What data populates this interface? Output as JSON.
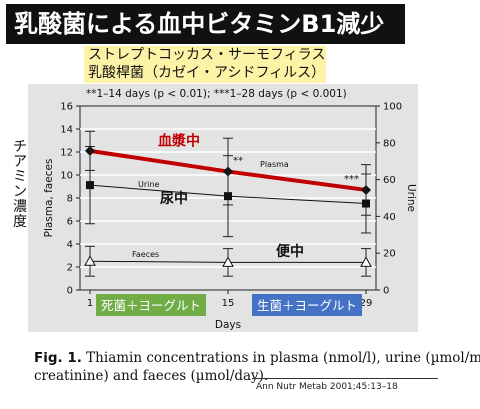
{
  "title": "乳酸菌による血中ビタミンB1減少",
  "bacteria": {
    "line1": "ストレプトコッカス・サーモフィラス",
    "line2": "乳酸桿菌（カゼイ・アシドフィルス）"
  },
  "ylabel_jp": [
    "チ",
    "ア",
    "ミ",
    "ン",
    "濃",
    "度"
  ],
  "caption": {
    "figno": "Fig. 1.",
    "line1": "Thiamin concentrations in plasma (nmol/l), urine (µmol/mol",
    "line2": "creatinine) and faeces (µmol/day)."
  },
  "citation": "Ann Nutr Metab 2001;45:13–18",
  "chart_data": {
    "type": "line",
    "significance_note": "**1–14 days (p < 0.01); ***1–28 days (p < 0.001)",
    "xlabel": "Days",
    "x": [
      1,
      15,
      29
    ],
    "x_ticks": [
      "1",
      "15",
      "29"
    ],
    "ylabel_left": "Plasma, faeces",
    "ylim_left": [
      0,
      16
    ],
    "yticks_left": [
      0,
      2,
      4,
      6,
      8,
      10,
      12,
      14,
      16
    ],
    "ylabel_right": "Urine",
    "ylim_right": [
      0,
      100
    ],
    "yticks_right": [
      0,
      20,
      40,
      60,
      80,
      100
    ],
    "grid": true,
    "series": [
      {
        "name": "Plasma",
        "axis": "left",
        "marker": "diamond-filled",
        "color": "#c00000",
        "values": [
          12.1,
          10.3,
          8.7
        ],
        "error": [
          1.7,
          2.9,
          2.2
        ],
        "annotations": [
          "",
          "**",
          "***"
        ]
      },
      {
        "name": "Urine",
        "axis": "right",
        "marker": "square-filled",
        "color": "#111111",
        "values": [
          57,
          51,
          47
        ],
        "error": [
          21,
          22,
          16
        ],
        "annotations": [
          "",
          "",
          ""
        ]
      },
      {
        "name": "Faeces",
        "axis": "left",
        "marker": "triangle-open",
        "color": "#111111",
        "values": [
          2.5,
          2.4,
          2.4
        ],
        "error": [
          1.3,
          1.2,
          1.2
        ],
        "annotations": [
          "",
          "",
          ""
        ]
      }
    ],
    "overlay_labels": {
      "plasma_jp": "血漿中",
      "urine_jp": "尿中",
      "faeces_jp": "便中"
    },
    "period_labels": [
      {
        "text": "死菌＋ヨーグルト",
        "color": "#70ad47"
      },
      {
        "text": "生菌＋ヨーグルト",
        "color": "#4472c4"
      }
    ]
  }
}
